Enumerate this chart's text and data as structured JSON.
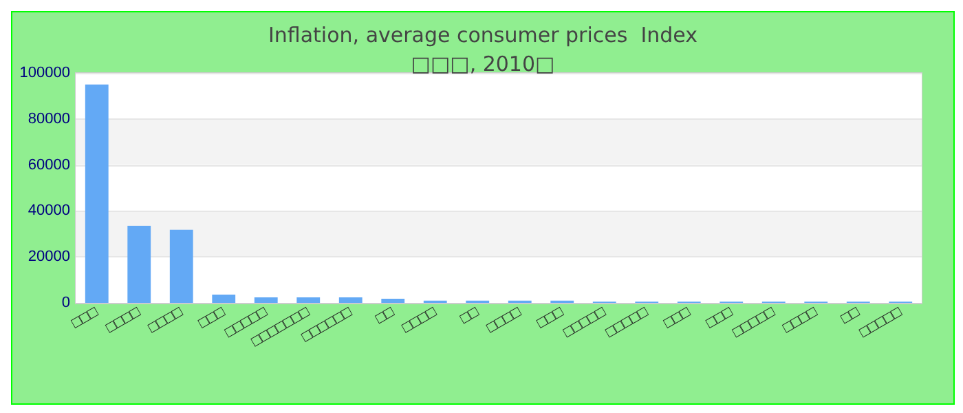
{
  "chart_data": {
    "type": "bar",
    "title": "Inflation, average consumer prices  Index",
    "subtitle": "□□□, 2010□",
    "categories": [
      "□□□",
      "□□□□",
      "□□□□",
      "□□□",
      "□□□□□",
      "□□□□□□□",
      "□□□□□□",
      "□□",
      "□□□□",
      "□□",
      "□□□□",
      "□□□",
      "□□□□□",
      "□□□□□",
      "□□□",
      "□□□",
      "□□□□□",
      "□□□□",
      "□□",
      "□□□□□"
    ],
    "values": [
      95000,
      33500,
      31800,
      3600,
      2400,
      2400,
      2400,
      1800,
      1000,
      1000,
      1000,
      1000,
      500,
      500,
      500,
      500,
      500,
      500,
      500,
      500
    ],
    "color": "#63a9f5",
    "ylim": [
      0,
      100000
    ],
    "yticks": [
      0,
      20000,
      40000,
      60000,
      80000,
      100000
    ],
    "grid": "y"
  }
}
